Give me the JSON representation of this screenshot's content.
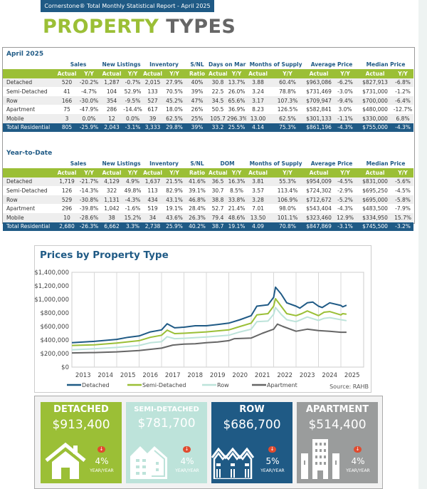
{
  "header": {
    "report_title": "Cornerstone® Total Monthly Statistical Report - April 2025"
  },
  "page_title": {
    "part1": "PROPERTY",
    "part2": "TYPES"
  },
  "colors": {
    "brand_blue": "#1f5a85",
    "brand_green": "#9bbf36",
    "row_teal": "#bde3da",
    "apartment_gray": "#9a9c9c"
  },
  "tables": [
    {
      "title": "April 2025",
      "groups": [
        "Sales",
        "New Listings",
        "Inventory",
        "S/NL",
        "Days on Market",
        "Months of Supply",
        "Average Price",
        "Median Price"
      ],
      "subheaders": [
        "Actual",
        "Y/Y",
        "Actual",
        "Y/Y",
        "Actual",
        "Y/Y",
        "Ratio",
        "Actual",
        "Y/Y",
        "Actual",
        "Y/Y",
        "Actual",
        "Y/Y",
        "Actual",
        "Y/Y"
      ],
      "rows": [
        [
          "Detached",
          "520",
          "-20.2%",
          "1,287",
          "-0.7%",
          "2,015",
          "27.9%",
          "40%",
          "30.8",
          "13.7%",
          "3.88",
          "60.4%",
          "$963,086",
          "-6.2%",
          "$827,913",
          "-6.8%"
        ],
        [
          "Semi-Detached",
          "41",
          "-4.7%",
          "104",
          "52.9%",
          "133",
          "70.5%",
          "39%",
          "22.5",
          "26.0%",
          "3.24",
          "78.8%",
          "$731,469",
          "-3.0%",
          "$731,000",
          "-1.2%"
        ],
        [
          "Row",
          "166",
          "-30.0%",
          "354",
          "-9.5%",
          "527",
          "45.2%",
          "47%",
          "34.5",
          "65.6%",
          "3.17",
          "107.3%",
          "$709,947",
          "-9.4%",
          "$700,000",
          "-6.4%"
        ],
        [
          "Apartment",
          "75",
          "-47.9%",
          "286",
          "-14.4%",
          "617",
          "18.0%",
          "26%",
          "50.5",
          "36.9%",
          "8.23",
          "126.5%",
          "$582,841",
          "3.0%",
          "$480,000",
          "-12.7%"
        ],
        [
          "Mobile",
          "3",
          "0.0%",
          "12",
          "0.0%",
          "39",
          "62.5%",
          "25%",
          "105.7",
          "296.3%",
          "13.00",
          "62.5%",
          "$301,133",
          "-1.1%",
          "$330,000",
          "6.8%"
        ]
      ],
      "total": [
        "Total Residential",
        "805",
        "-25.9%",
        "2,043",
        "-3.1%",
        "3,333",
        "29.8%",
        "39%",
        "33.2",
        "25.5%",
        "4.14",
        "75.3%",
        "$861,196",
        "-4.3%",
        "$755,000",
        "-4.3%"
      ]
    },
    {
      "title": "Year-to-Date",
      "groups": [
        "Sales",
        "New Listings",
        "Inventory",
        "S/NL",
        "DOM",
        "Months of Supply",
        "Average Price",
        "Median Price"
      ],
      "subheaders": [
        "Actual",
        "Y/Y",
        "Actual",
        "Y/Y",
        "Actual",
        "Y/Y",
        "Ratio",
        "Actual",
        "Y/Y",
        "Actual",
        "Y/Y",
        "Actual",
        "Y/Y",
        "Actual",
        "Y/Y"
      ],
      "rows": [
        [
          "Detached",
          "1,719",
          "-21.7%",
          "4,129",
          "4.9%",
          "1,637",
          "21.5%",
          "41.6%",
          "36.5",
          "16.3%",
          "3.81",
          "55.3%",
          "$954,009",
          "-4.5%",
          "$831,000",
          "-5.6%"
        ],
        [
          "Semi-Detached",
          "126",
          "-14.3%",
          "322",
          "49.8%",
          "113",
          "82.9%",
          "39.1%",
          "30.7",
          "8.5%",
          "3.57",
          "113.4%",
          "$724,302",
          "-2.9%",
          "$695,250",
          "-4.5%"
        ],
        [
          "Row",
          "529",
          "-30.8%",
          "1,131",
          "-4.3%",
          "434",
          "43.1%",
          "46.8%",
          "38.8",
          "33.8%",
          "3.28",
          "106.9%",
          "$712,672",
          "-5.2%",
          "$695,000",
          "-5.8%"
        ],
        [
          "Apartment",
          "296",
          "-39.8%",
          "1,042",
          "-1.6%",
          "519",
          "19.1%",
          "28.4%",
          "52.7",
          "21.4%",
          "7.01",
          "98.0%",
          "$543,404",
          "-4.3%",
          "$483,500",
          "-7.9%"
        ],
        [
          "Mobile",
          "10",
          "-28.6%",
          "38",
          "15.2%",
          "34",
          "43.6%",
          "26.3%",
          "79.4",
          "48.6%",
          "13.50",
          "101.1%",
          "$323,460",
          "12.9%",
          "$334,950",
          "15.7%"
        ]
      ],
      "total": [
        "Total Residential",
        "2,680",
        "-26.3%",
        "6,662",
        "3.3%",
        "2,738",
        "25.9%",
        "40.2%",
        "38.7",
        "19.1%",
        "4.09",
        "70.8%",
        "$847,869",
        "-3.1%",
        "$745,500",
        "-3.2%"
      ]
    }
  ],
  "chart_data": {
    "type": "line",
    "title": "Prices by Property Type",
    "source": "Source: RAHB",
    "ylim": [
      0,
      1400000
    ],
    "yticks": [
      "$0",
      "$200,000",
      "$400,000",
      "$600,000",
      "$800,000",
      "$1,000,000",
      "$1,200,000",
      "$1,400,000"
    ],
    "xticks": [
      "2013",
      "2014",
      "2015",
      "2016",
      "2017",
      "2018",
      "2019",
      "2020",
      "2021",
      "2022",
      "2023",
      "2024",
      "2025"
    ],
    "grid": "vertical",
    "legend": "bottom",
    "series": [
      {
        "name": "Detached",
        "color": "#1f5a85",
        "points": [
          [
            "2013-01",
            360000
          ],
          [
            "2014-01",
            380000
          ],
          [
            "2015-01",
            410000
          ],
          [
            "2015-07",
            440000
          ],
          [
            "2016-01",
            460000
          ],
          [
            "2016-07",
            520000
          ],
          [
            "2017-01",
            550000
          ],
          [
            "2017-04",
            640000
          ],
          [
            "2017-08",
            580000
          ],
          [
            "2018-01",
            590000
          ],
          [
            "2018-07",
            610000
          ],
          [
            "2019-01",
            610000
          ],
          [
            "2019-07",
            630000
          ],
          [
            "2020-01",
            650000
          ],
          [
            "2020-07",
            700000
          ],
          [
            "2021-01",
            760000
          ],
          [
            "2021-04",
            900000
          ],
          [
            "2021-10",
            920000
          ],
          [
            "2022-01",
            1030000
          ],
          [
            "2022-02",
            1180000
          ],
          [
            "2022-05",
            1080000
          ],
          [
            "2022-08",
            950000
          ],
          [
            "2023-01",
            900000
          ],
          [
            "2023-03",
            870000
          ],
          [
            "2023-07",
            950000
          ],
          [
            "2023-10",
            960000
          ],
          [
            "2024-01",
            900000
          ],
          [
            "2024-03",
            880000
          ],
          [
            "2024-07",
            950000
          ],
          [
            "2025-01",
            910000
          ],
          [
            "2025-02",
            890000
          ],
          [
            "2025-04",
            913400
          ]
        ]
      },
      {
        "name": "Semi-Detached",
        "color": "#9bbf36",
        "points": [
          [
            "2013-01",
            320000
          ],
          [
            "2014-01",
            330000
          ],
          [
            "2015-01",
            355000
          ],
          [
            "2016-01",
            390000
          ],
          [
            "2016-07",
            440000
          ],
          [
            "2017-01",
            470000
          ],
          [
            "2017-04",
            545000
          ],
          [
            "2017-08",
            495000
          ],
          [
            "2018-01",
            500000
          ],
          [
            "2019-01",
            520000
          ],
          [
            "2020-01",
            550000
          ],
          [
            "2020-07",
            600000
          ],
          [
            "2021-01",
            650000
          ],
          [
            "2021-04",
            770000
          ],
          [
            "2021-10",
            790000
          ],
          [
            "2022-01",
            900000
          ],
          [
            "2022-02",
            1010000
          ],
          [
            "2022-05",
            900000
          ],
          [
            "2022-08",
            790000
          ],
          [
            "2023-01",
            760000
          ],
          [
            "2023-04",
            790000
          ],
          [
            "2023-07",
            830000
          ],
          [
            "2024-01",
            760000
          ],
          [
            "2024-04",
            810000
          ],
          [
            "2024-07",
            820000
          ],
          [
            "2025-01",
            770000
          ],
          [
            "2025-02",
            790000
          ],
          [
            "2025-04",
            781700
          ]
        ]
      },
      {
        "name": "Row",
        "color": "#bde3da",
        "points": [
          [
            "2013-01",
            255000
          ],
          [
            "2014-01",
            270000
          ],
          [
            "2015-01",
            290000
          ],
          [
            "2016-01",
            320000
          ],
          [
            "2016-07",
            360000
          ],
          [
            "2017-01",
            375000
          ],
          [
            "2017-04",
            450000
          ],
          [
            "2017-08",
            420000
          ],
          [
            "2018-01",
            425000
          ],
          [
            "2019-01",
            445000
          ],
          [
            "2020-01",
            470000
          ],
          [
            "2020-07",
            520000
          ],
          [
            "2021-01",
            560000
          ],
          [
            "2021-04",
            670000
          ],
          [
            "2021-10",
            680000
          ],
          [
            "2022-01",
            780000
          ],
          [
            "2022-02",
            880000
          ],
          [
            "2022-05",
            780000
          ],
          [
            "2022-08",
            700000
          ],
          [
            "2023-01",
            670000
          ],
          [
            "2023-07",
            740000
          ],
          [
            "2024-01",
            690000
          ],
          [
            "2024-04",
            720000
          ],
          [
            "2024-07",
            730000
          ],
          [
            "2025-01",
            700000
          ],
          [
            "2025-04",
            686700
          ]
        ]
      },
      {
        "name": "Apartment",
        "color": "#666666",
        "points": [
          [
            "2013-01",
            210000
          ],
          [
            "2014-01",
            215000
          ],
          [
            "2015-01",
            225000
          ],
          [
            "2016-01",
            245000
          ],
          [
            "2017-01",
            280000
          ],
          [
            "2017-07",
            325000
          ],
          [
            "2018-01",
            340000
          ],
          [
            "2018-07",
            345000
          ],
          [
            "2019-01",
            360000
          ],
          [
            "2019-07",
            370000
          ],
          [
            "2020-01",
            390000
          ],
          [
            "2020-04",
            420000
          ],
          [
            "2021-01",
            430000
          ],
          [
            "2021-07",
            500000
          ],
          [
            "2022-01",
            560000
          ],
          [
            "2022-03",
            635000
          ],
          [
            "2022-06",
            600000
          ],
          [
            "2023-01",
            530000
          ],
          [
            "2023-07",
            560000
          ],
          [
            "2024-01",
            540000
          ],
          [
            "2024-07",
            530000
          ],
          [
            "2025-01",
            515000
          ],
          [
            "2025-04",
            514400
          ]
        ]
      }
    ]
  },
  "cards": [
    {
      "name": "DETACHED",
      "price": "$913,400",
      "change": "4%",
      "direction": "down",
      "period": "YEAR/YEAR",
      "icon": "house-icon",
      "color": "#9bbf36"
    },
    {
      "name": "SEMI-DETACHED",
      "price": "$781,700",
      "change": "4%",
      "direction": "down",
      "period": "YEAR/YEAR",
      "icon": "semi-detached-icon",
      "color": "#bde3da"
    },
    {
      "name": "ROW",
      "price": "$686,700",
      "change": "5%",
      "direction": "down",
      "period": "YEAR/YEAR",
      "icon": "townhouse-row-icon",
      "color": "#1f5a85"
    },
    {
      "name": "APARTMENT",
      "price": "$514,400",
      "change": "4%",
      "direction": "down",
      "period": "YEAR/YEAR",
      "icon": "apartment-building-icon",
      "color": "#9a9c9c"
    }
  ]
}
